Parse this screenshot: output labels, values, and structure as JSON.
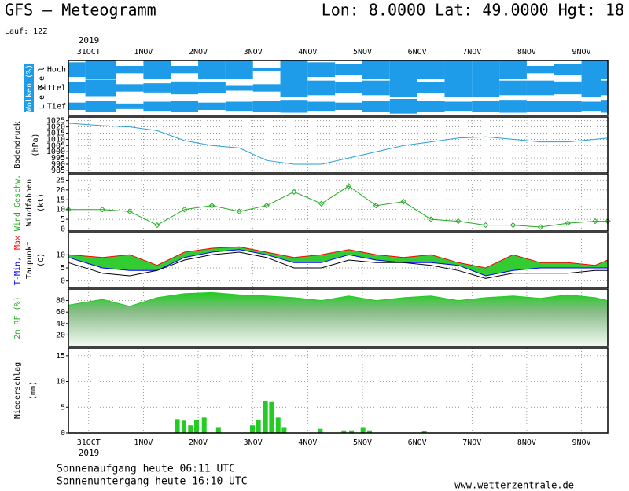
{
  "header": {
    "title": "GFS – Meteogramm",
    "location": "Lon: 8.0000  Lat: 49.0000  Hgt: 18",
    "run": "Lauf: 12Z",
    "sunrise": "Sonnenaufgang heute 06:11 UTC",
    "sunset": "Sonnenuntergang heute 16:10 UTC",
    "source": "www.wetterzentrale.de"
  },
  "time_axis": {
    "year": "2019",
    "xlim": [
      -0.37,
      9.48
    ],
    "xticks": [
      {
        "value": 0,
        "label": "31OCT"
      },
      {
        "value": 1,
        "label": "1NOV"
      },
      {
        "value": 2,
        "label": "2NOV"
      },
      {
        "value": 3,
        "label": "3NOV"
      },
      {
        "value": 4,
        "label": "4NOV"
      },
      {
        "value": 5,
        "label": "5NOV"
      },
      {
        "value": 6,
        "label": "6NOV"
      },
      {
        "value": 7,
        "label": "7NOV"
      },
      {
        "value": 8,
        "label": "8NOV"
      },
      {
        "value": 9,
        "label": "9NOV"
      }
    ]
  },
  "chart_data": [
    {
      "type": "cloud",
      "ylabel": "Wolken (%)",
      "level_label": "L e v e l",
      "ylim": [
        0,
        100
      ],
      "x": [
        -0.37,
        0.25,
        0.75,
        1.25,
        1.75,
        2.25,
        2.75,
        3.25,
        3.75,
        4.25,
        4.75,
        5.25,
        5.75,
        6.25,
        6.75,
        7.25,
        7.75,
        8.25,
        8.75,
        9.25,
        9.48
      ],
      "series": [
        {
          "name": "Hoch",
          "color": "#1e9be9",
          "values": [
            80,
            100,
            40,
            100,
            40,
            100,
            100,
            20,
            100,
            80,
            60,
            100,
            100,
            100,
            100,
            100,
            100,
            40,
            60,
            100,
            100
          ]
        },
        {
          "name": "Mittel",
          "color": "#1e9be9",
          "values": [
            60,
            90,
            40,
            50,
            70,
            60,
            30,
            40,
            100,
            80,
            60,
            80,
            100,
            60,
            100,
            100,
            80,
            80,
            70,
            100,
            80
          ]
        },
        {
          "name": "Tief",
          "color": "#1e9be9",
          "values": [
            40,
            60,
            30,
            50,
            60,
            40,
            50,
            60,
            70,
            50,
            40,
            60,
            80,
            60,
            50,
            60,
            70,
            60,
            60,
            50,
            70
          ]
        }
      ]
    },
    {
      "type": "line",
      "ylabel": "Bodendruck",
      "unit": "(hPa)",
      "ylim": [
        983,
        1028
      ],
      "yticks": [
        985,
        990,
        995,
        1000,
        1005,
        1010,
        1015,
        1020,
        1025
      ],
      "grid": true,
      "x": [
        -0.37,
        0.25,
        0.75,
        1.25,
        1.75,
        2.25,
        2.75,
        3.25,
        3.75,
        4.25,
        4.75,
        5.25,
        5.75,
        6.25,
        6.75,
        7.25,
        7.75,
        8.25,
        8.75,
        9.25,
        9.48
      ],
      "series": [
        {
          "color": "#2a9fd8",
          "values": [
            1023,
            1021,
            1020,
            1017,
            1009,
            1005,
            1003,
            993,
            990,
            990,
            995,
            1000,
            1005,
            1008,
            1011,
            1012,
            1010,
            1008,
            1008,
            1010,
            1011
          ]
        }
      ]
    },
    {
      "type": "line",
      "unit": "(kt)",
      "barb_label": "Windfahnen",
      "ylim": [
        -1,
        28
      ],
      "yticks": [
        0,
        5,
        10,
        15,
        20,
        25
      ],
      "grid": true,
      "x": [
        -0.37,
        0.25,
        0.75,
        1.25,
        1.75,
        2.25,
        2.75,
        3.25,
        3.75,
        4.25,
        4.75,
        5.25,
        5.75,
        6.25,
        6.75,
        7.25,
        7.75,
        8.25,
        8.75,
        9.25,
        9.48
      ],
      "series": [
        {
          "name": "Wind Geschw.",
          "color": "#22aa22",
          "marker": "diamond",
          "values": [
            10,
            10,
            9,
            2,
            10,
            12,
            9,
            12,
            19,
            13,
            22,
            12,
            14,
            5,
            4,
            2,
            2,
            1,
            3,
            4,
            4
          ]
        }
      ]
    },
    {
      "type": "band",
      "unit": "(C)",
      "ylim": [
        -2.5,
        18.5
      ],
      "yticks": [
        0,
        5,
        10
      ],
      "grid": true,
      "fill": "#33cc33",
      "x": [
        -0.37,
        0.25,
        0.75,
        1.25,
        1.75,
        2.25,
        2.75,
        3.25,
        3.75,
        4.25,
        4.75,
        5.25,
        5.75,
        6.25,
        6.75,
        7.25,
        7.75,
        8.25,
        8.75,
        9.25,
        9.48
      ],
      "series": [
        {
          "name": "T-Min,",
          "color": "#0000ff",
          "values": [
            9,
            5,
            4,
            4,
            9,
            11,
            12,
            10,
            7,
            7,
            10,
            8,
            7,
            7,
            6,
            2,
            4,
            5,
            5,
            5,
            5
          ]
        },
        {
          "name": "Max",
          "color": "#ff0000",
          "values": [
            10,
            9,
            10,
            6,
            11,
            12.5,
            13,
            11,
            9,
            10,
            12,
            10,
            9,
            10,
            7,
            5,
            10,
            7,
            7,
            6,
            8
          ]
        },
        {
          "name": "Taupunkt",
          "color": "#000000",
          "values": [
            7,
            3,
            2,
            4,
            8,
            10,
            11,
            9,
            5,
            5,
            8,
            7,
            7,
            6,
            4,
            1,
            3,
            3,
            3,
            4,
            4
          ]
        }
      ]
    },
    {
      "type": "area",
      "ylabel": "2m RF (%)",
      "ylim": [
        0,
        100
      ],
      "yticks": [
        20,
        40,
        60,
        80
      ],
      "grid": true,
      "x": [
        -0.37,
        0.25,
        0.75,
        1.25,
        1.75,
        2.25,
        2.75,
        3.25,
        3.75,
        4.25,
        4.75,
        5.25,
        5.75,
        6.25,
        6.75,
        7.25,
        7.75,
        8.25,
        8.75,
        9.25,
        9.48
      ],
      "series": [
        {
          "color": "#22cc22",
          "values": [
            72,
            82,
            70,
            85,
            92,
            94,
            90,
            88,
            85,
            80,
            88,
            80,
            85,
            88,
            80,
            85,
            88,
            84,
            90,
            85,
            80
          ]
        }
      ]
    },
    {
      "type": "bar",
      "ylabel": "Niederschlag",
      "unit": "(mm)",
      "ylim": [
        0,
        16.5
      ],
      "yticks": [
        0,
        5,
        10,
        15
      ],
      "grid": true,
      "color": "#22cc22",
      "x": [
        1.62,
        1.74,
        1.86,
        1.97,
        2.11,
        2.37,
        2.99,
        3.1,
        3.23,
        3.34,
        3.46,
        3.57,
        4.23,
        4.66,
        4.8,
        5.01,
        5.13,
        6.13
      ],
      "values": [
        2.7,
        2.4,
        1.5,
        2.5,
        3.0,
        1.0,
        1.5,
        2.5,
        6.2,
        6.0,
        3.0,
        1.0,
        0.8,
        0.5,
        0.5,
        1.0,
        0.5,
        0.4
      ]
    }
  ]
}
